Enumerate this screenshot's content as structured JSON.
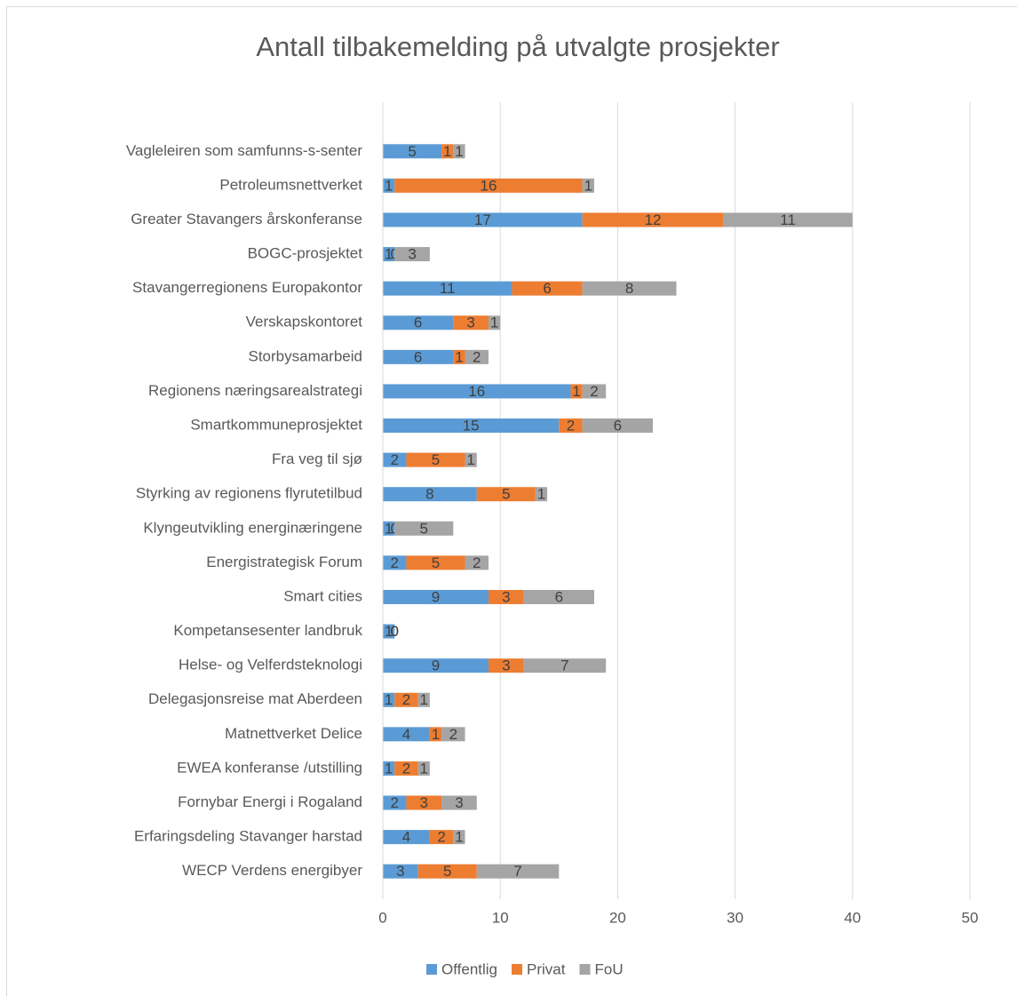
{
  "chart_data": {
    "type": "stacked_barh",
    "title": "Antall tilbakemelding på utvalgte prosjekter",
    "categories": [
      "Vagleleiren som samfunns-s-senter",
      "Petroleumsnettverket",
      "Greater Stavangers årskonferanse",
      "BOGC-prosjektet",
      "Stavangerregionens Europakontor",
      "Verskapskontoret",
      "Storbysamarbeid",
      "Regionens næringsarealstrategi",
      "Smartkommuneprosjektet",
      "Fra veg til sjø",
      "Styrking av regionens flyrutetilbud",
      "Klyngeutvikling energinæringene",
      "Energistrategisk Forum",
      "Smart cities",
      "Kompetansesenter landbruk",
      "Helse- og Velferdsteknologi",
      "Delegasjonsreise mat Aberdeen",
      "Matnettverket Delice",
      "EWEA konferanse /utstilling",
      "Fornybar Energi i Rogaland",
      "Erfaringsdeling Stavanger harstad",
      "WECP Verdens energibyer"
    ],
    "series": [
      {
        "name": "Offentlig",
        "color": "#5b9bd5",
        "values": [
          5,
          1,
          17,
          1,
          11,
          6,
          6,
          16,
          15,
          2,
          8,
          1,
          2,
          9,
          1,
          9,
          1,
          4,
          1,
          2,
          4,
          3
        ]
      },
      {
        "name": "Privat",
        "color": "#ed7d31",
        "values": [
          1,
          16,
          12,
          0,
          6,
          3,
          1,
          1,
          2,
          5,
          5,
          0,
          5,
          3,
          0,
          3,
          2,
          1,
          2,
          3,
          2,
          5
        ]
      },
      {
        "name": "FoU",
        "color": "#a5a5a5",
        "values": [
          1,
          1,
          11,
          3,
          8,
          1,
          2,
          2,
          6,
          1,
          1,
          5,
          2,
          6,
          0,
          7,
          1,
          2,
          1,
          3,
          1,
          7
        ]
      }
    ],
    "xlim": [
      0,
      50
    ],
    "xticks": [
      0,
      10,
      20,
      30,
      40,
      50
    ],
    "grid": true,
    "legend": "bottom"
  }
}
